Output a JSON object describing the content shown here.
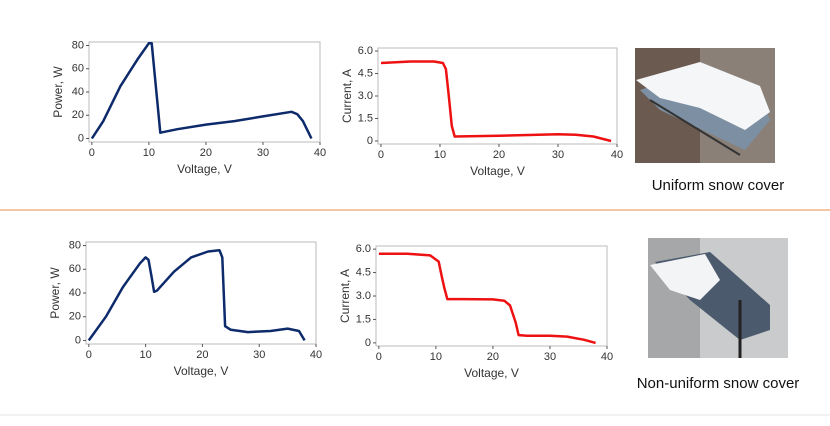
{
  "chart_data": [
    {
      "type": "line",
      "ylabel": "Power, W",
      "xlabel": "Voltage,  V",
      "color": "#0d2a6b",
      "x": [
        0,
        2,
        5,
        8,
        10,
        10.5,
        12,
        15,
        20,
        25,
        30,
        35,
        36,
        37,
        38,
        38.5
      ],
      "values": [
        0,
        15,
        45,
        68,
        82,
        82,
        5,
        8,
        12,
        15,
        19,
        23,
        21,
        15,
        5,
        0
      ],
      "xlim": [
        -0.5,
        40
      ],
      "xticks": [
        0,
        10,
        20,
        30,
        40
      ],
      "ylim": [
        -3,
        83
      ],
      "yticks": [
        0,
        20,
        40,
        60,
        80
      ]
    },
    {
      "type": "line",
      "ylabel": "Current, A",
      "xlabel": "Voltage,  V",
      "color": "#ee1111",
      "x": [
        0,
        5,
        9,
        10.5,
        11,
        11.5,
        12,
        12.5,
        15,
        20,
        25,
        30,
        33,
        36,
        38,
        39
      ],
      "values": [
        5.2,
        5.3,
        5.3,
        5.2,
        4.8,
        3,
        1,
        0.3,
        0.32,
        0.35,
        0.4,
        0.45,
        0.42,
        0.3,
        0.1,
        0
      ],
      "xlim": [
        -0.5,
        40
      ],
      "xticks": [
        0,
        10,
        20,
        30,
        40
      ],
      "ylim": [
        -0.2,
        6.2
      ],
      "yticks": [
        0,
        1.5,
        {
          "value": 3,
          "label": "3.0"
        },
        4.5,
        {
          "value": 6,
          "label": "6.0"
        }
      ]
    },
    {
      "type": "line",
      "ylabel": "Power, W",
      "xlabel": "Voltage,  V",
      "color": "#0d2a6b",
      "x": [
        0,
        3,
        6,
        9,
        10,
        10.5,
        11,
        11.5,
        12,
        15,
        18,
        21,
        23,
        23.5,
        24,
        25,
        28,
        32,
        35,
        37,
        38
      ],
      "values": [
        0,
        20,
        45,
        65,
        70,
        68,
        55,
        41,
        42,
        58,
        70,
        75,
        76,
        70,
        12,
        9,
        7,
        8,
        10,
        8,
        0
      ],
      "xlim": [
        -0.5,
        40
      ],
      "xticks": [
        0,
        10,
        20,
        30,
        40
      ],
      "ylim": [
        -3,
        83
      ],
      "yticks": [
        0,
        20,
        40,
        60,
        80
      ]
    },
    {
      "type": "line",
      "ylabel": "Current, A",
      "xlabel": "Voltage,  V",
      "color": "#ee1111",
      "x": [
        0,
        5,
        9,
        10.5,
        11,
        11.5,
        12,
        15,
        20,
        22,
        23,
        24,
        24.5,
        26,
        30,
        33,
        36,
        38
      ],
      "values": [
        5.7,
        5.7,
        5.6,
        5.2,
        4.3,
        3.5,
        2.8,
        2.8,
        2.78,
        2.7,
        2.4,
        1.3,
        0.5,
        0.45,
        0.45,
        0.4,
        0.2,
        0
      ],
      "xlim": [
        -0.5,
        40
      ],
      "xticks": [
        0,
        10,
        20,
        30,
        40
      ],
      "ylim": [
        -0.2,
        6.2
      ],
      "yticks": [
        0,
        1.5,
        {
          "value": 3,
          "label": "3.0"
        },
        4.5,
        {
          "value": 6,
          "label": "6.0"
        }
      ]
    }
  ],
  "captions": [
    "Uniform snow cover",
    "Non-uniform snow cover"
  ]
}
